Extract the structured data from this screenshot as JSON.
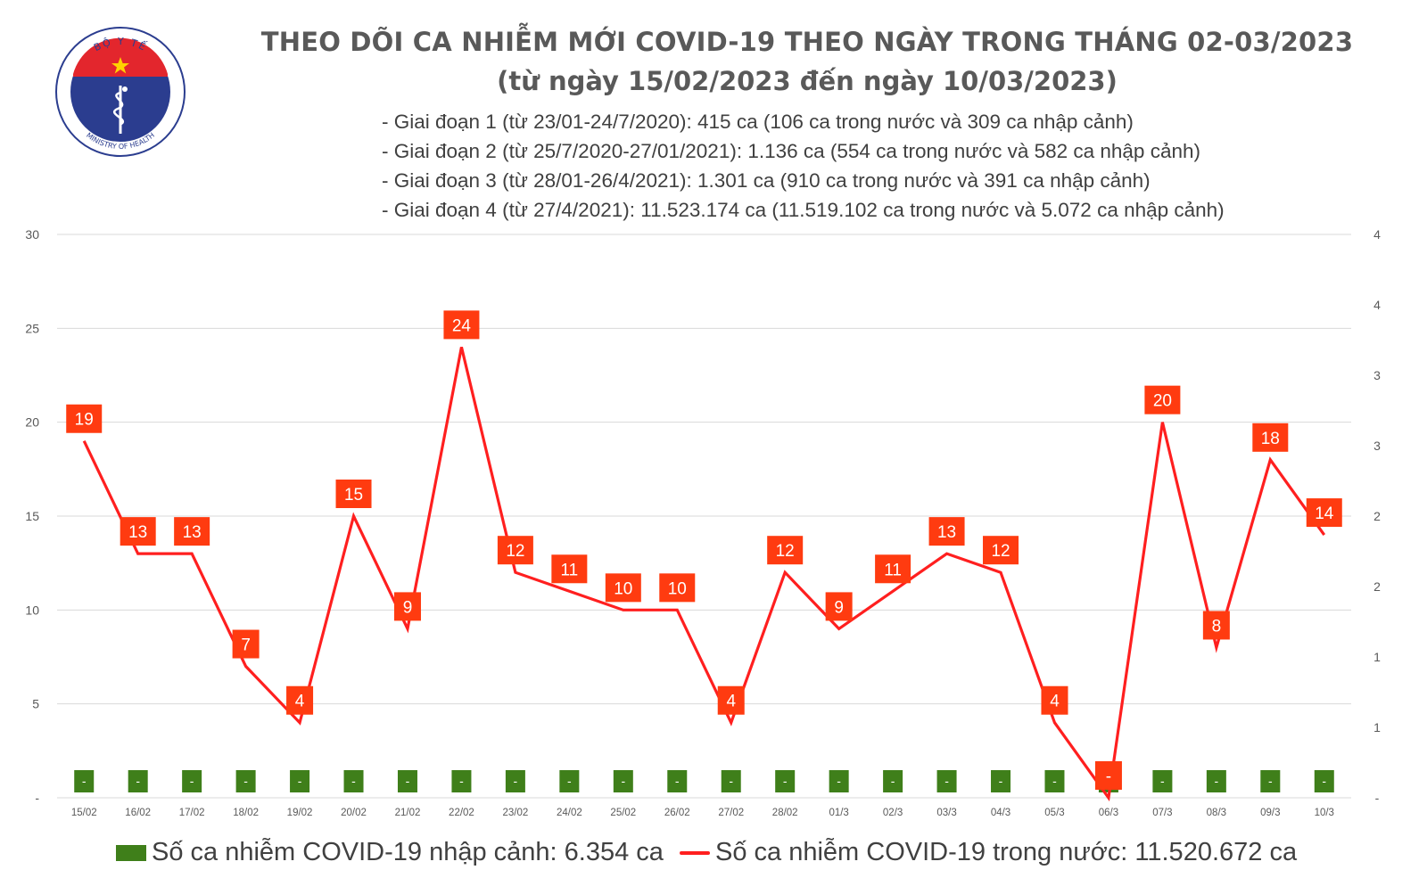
{
  "header": {
    "title_line1": "THEO DÕI CA NHIỄM MỚI COVID-19 THEO NGÀY TRONG THÁNG 02-03/2023",
    "title_line2": "(từ ngày 15/02/2023 đến ngày 10/03/2023)",
    "notes": [
      "- Giai đoạn 1 (từ 23/01-24/7/2020): 415 ca (106 ca trong nước và 309 ca nhập cảnh)",
      "- Giai đoạn 2 (từ 25/7/2020-27/01/2021): 1.136 ca (554 ca trong nước và 582 ca nhập cảnh)",
      "- Giai đoạn 3 (từ 28/01-26/4/2021): 1.301 ca (910 ca trong nước và 391 ca nhập cảnh)",
      "- Giai đoạn 4 (từ 27/4/2021): 11.523.174 ca (11.519.102 ca trong nước và 5.072 ca nhập cảnh)"
    ]
  },
  "logo": {
    "arc_top_text": "BỘ Y TẾ",
    "arc_bottom_text": "MINISTRY OF HEALTH"
  },
  "legend": {
    "bar_label": "Số ca nhiễm COVID-19 nhập cảnh: 6.354 ca",
    "line_label": "Số ca nhiễm COVID-19 trong nước: 11.520.672 ca"
  },
  "colors": {
    "line": "#ff1f1f",
    "label_box": "#ff3b10",
    "bar": "#3f7f1a",
    "grid": "#d9d9d9",
    "axis_text": "#595959",
    "logo_blue": "#2b3d8f",
    "logo_red": "#e3262d"
  },
  "chart_data": {
    "type": "line",
    "categories": [
      "15/02",
      "16/02",
      "17/02",
      "18/02",
      "19/02",
      "20/02",
      "21/02",
      "22/02",
      "23/02",
      "24/02",
      "25/02",
      "26/02",
      "27/02",
      "28/02",
      "01/3",
      "02/3",
      "03/3",
      "04/3",
      "05/3",
      "06/3",
      "07/3",
      "08/3",
      "09/3",
      "10/3"
    ],
    "series": [
      {
        "name": "Số ca nhiễm COVID-19 trong nước: 11.520.672 ca",
        "type": "line",
        "axis": "left",
        "values": [
          19,
          13,
          13,
          7,
          4,
          15,
          9,
          24,
          12,
          11,
          10,
          10,
          4,
          12,
          9,
          11,
          13,
          12,
          4,
          0,
          20,
          8,
          18,
          14
        ],
        "labels": [
          "19",
          "13",
          "13",
          "7",
          "4",
          "15",
          "9",
          "24",
          "12",
          "11",
          "10",
          "10",
          "4",
          "12",
          "9",
          "11",
          "13",
          "12",
          "4",
          "-",
          "20",
          "8",
          "18",
          "14"
        ]
      },
      {
        "name": "Số ca nhiễm COVID-19 nhập cảnh: 6.354 ca",
        "type": "bar",
        "axis": "right",
        "values": [
          0,
          0,
          0,
          0,
          0,
          0,
          0,
          0,
          0,
          0,
          0,
          0,
          0,
          0,
          0,
          0,
          0,
          0,
          0,
          0,
          0,
          0,
          0,
          0
        ],
        "labels": [
          "-",
          "-",
          "-",
          "-",
          "-",
          "-",
          "-",
          "-",
          "-",
          "-",
          "-",
          "-",
          "-",
          "-",
          "-",
          "-",
          "-",
          "-",
          "-",
          "-",
          "-",
          "-",
          "-",
          "-"
        ]
      }
    ],
    "y_left": {
      "ylim": [
        0,
        30
      ],
      "ticks": [
        "-",
        "5",
        "10",
        "15",
        "20",
        "25",
        "30"
      ]
    },
    "y_right": {
      "ylim": [
        0,
        4
      ],
      "ticks": [
        "-",
        "1",
        "1",
        "2",
        "2",
        "3",
        "3",
        "4",
        "4"
      ]
    },
    "grid": true,
    "legend_position": "bottom"
  }
}
